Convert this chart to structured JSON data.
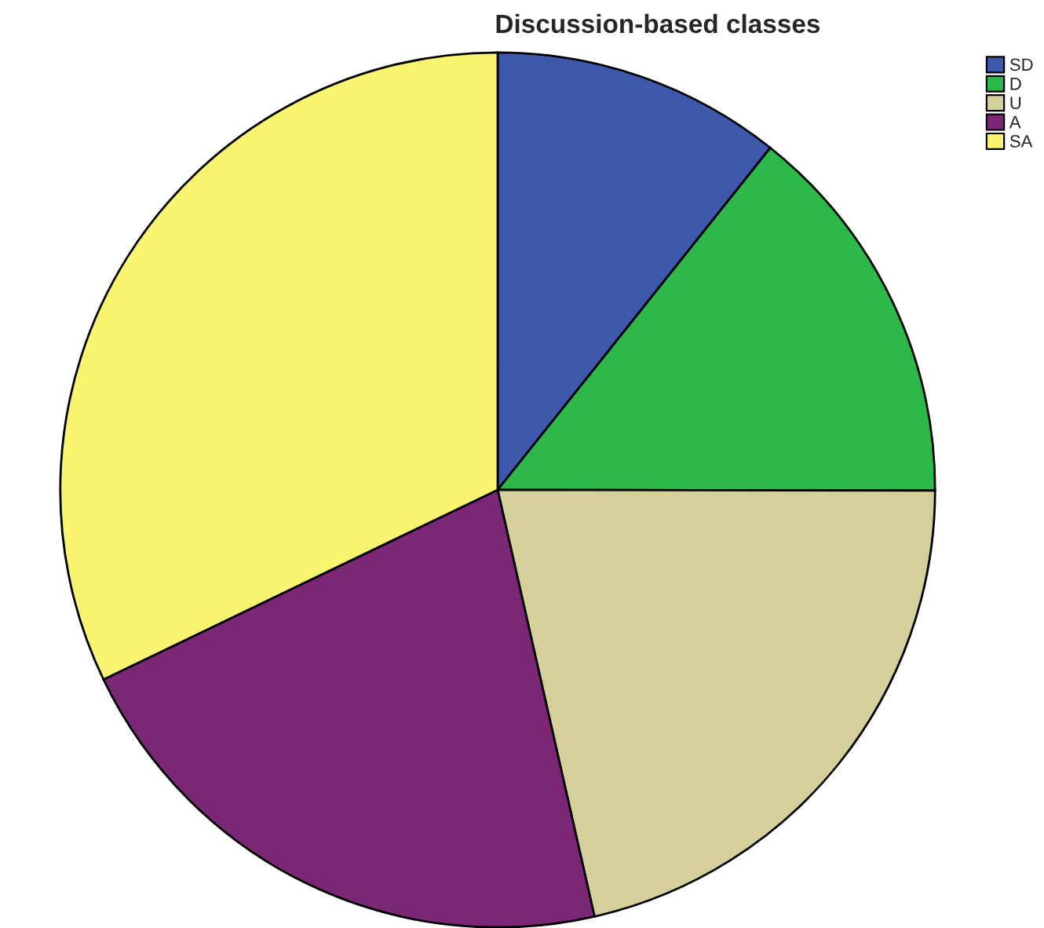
{
  "chart_data": {
    "type": "pie",
    "title": "Discussion-based classes",
    "categories": [
      "SD",
      "D",
      "U",
      "A",
      "SA"
    ],
    "values": [
      10.7,
      14.3,
      21.4,
      21.4,
      32.1
    ],
    "colors": [
      "#3e58ac",
      "#2fb84a",
      "#d4cf9b",
      "#7b2776",
      "#f9f570"
    ],
    "legend": "top right"
  }
}
